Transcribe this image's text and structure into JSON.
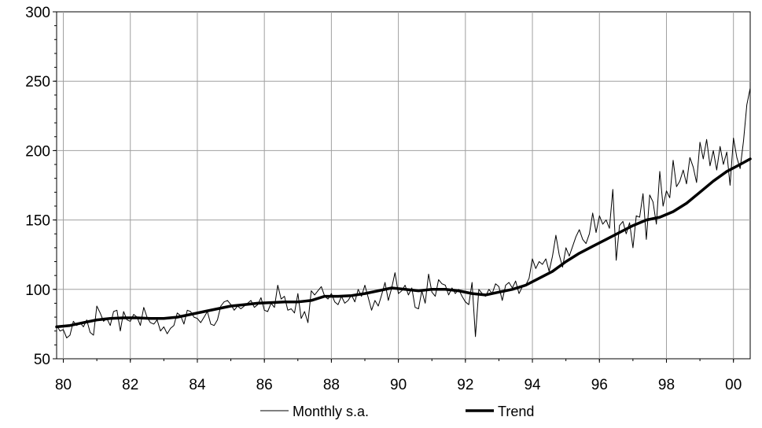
{
  "chart_data": {
    "type": "line",
    "title": "",
    "xlabel": "",
    "ylabel": "",
    "xlim": [
      1979.8,
      2000.5
    ],
    "ylim": [
      50,
      300
    ],
    "x_ticks": [
      "80",
      "82",
      "84",
      "86",
      "88",
      "90",
      "92",
      "94",
      "96",
      "98",
      "00"
    ],
    "y_ticks": [
      "50",
      "100",
      "150",
      "200",
      "250",
      "300"
    ],
    "grid": true,
    "legend": {
      "placement": "bottom-center"
    },
    "series": [
      {
        "name": "Monthly s.a.",
        "style": "thin",
        "color": "#000000",
        "points": [
          [
            1979.8,
            74
          ],
          [
            1979.9,
            70
          ],
          [
            1980.0,
            71
          ],
          [
            1980.1,
            65
          ],
          [
            1980.2,
            67
          ],
          [
            1980.3,
            77
          ],
          [
            1980.4,
            74
          ],
          [
            1980.5,
            76
          ],
          [
            1980.6,
            73
          ],
          [
            1980.7,
            78
          ],
          [
            1980.8,
            69
          ],
          [
            1980.9,
            67
          ],
          [
            1981.0,
            88
          ],
          [
            1981.1,
            83
          ],
          [
            1981.2,
            77
          ],
          [
            1981.3,
            79
          ],
          [
            1981.4,
            74
          ],
          [
            1981.5,
            84
          ],
          [
            1981.6,
            85
          ],
          [
            1981.7,
            70
          ],
          [
            1981.8,
            84
          ],
          [
            1981.9,
            78
          ],
          [
            1982.0,
            77
          ],
          [
            1982.1,
            82
          ],
          [
            1982.2,
            80
          ],
          [
            1982.3,
            74
          ],
          [
            1982.4,
            87
          ],
          [
            1982.5,
            80
          ],
          [
            1982.6,
            76
          ],
          [
            1982.7,
            75
          ],
          [
            1982.8,
            78
          ],
          [
            1982.9,
            70
          ],
          [
            1983.0,
            73
          ],
          [
            1983.1,
            68
          ],
          [
            1983.2,
            72
          ],
          [
            1983.3,
            74
          ],
          [
            1983.4,
            83
          ],
          [
            1983.5,
            81
          ],
          [
            1983.6,
            75
          ],
          [
            1983.7,
            85
          ],
          [
            1983.8,
            84
          ],
          [
            1983.9,
            80
          ],
          [
            1984.0,
            79
          ],
          [
            1984.1,
            76
          ],
          [
            1984.2,
            80
          ],
          [
            1984.3,
            84
          ],
          [
            1984.4,
            75
          ],
          [
            1984.5,
            74
          ],
          [
            1984.6,
            78
          ],
          [
            1984.7,
            88
          ],
          [
            1984.8,
            91
          ],
          [
            1984.9,
            92
          ],
          [
            1985.0,
            89
          ],
          [
            1985.1,
            85
          ],
          [
            1985.2,
            88
          ],
          [
            1985.3,
            86
          ],
          [
            1985.4,
            88
          ],
          [
            1985.5,
            90
          ],
          [
            1985.6,
            92
          ],
          [
            1985.7,
            87
          ],
          [
            1985.8,
            89
          ],
          [
            1985.9,
            94
          ],
          [
            1986.0,
            85
          ],
          [
            1986.1,
            84
          ],
          [
            1986.2,
            90
          ],
          [
            1986.3,
            87
          ],
          [
            1986.4,
            103
          ],
          [
            1986.5,
            93
          ],
          [
            1986.6,
            95
          ],
          [
            1986.7,
            85
          ],
          [
            1986.8,
            86
          ],
          [
            1986.9,
            83
          ],
          [
            1987.0,
            97
          ],
          [
            1987.1,
            79
          ],
          [
            1987.2,
            84
          ],
          [
            1987.3,
            76
          ],
          [
            1987.4,
            99
          ],
          [
            1987.5,
            96
          ],
          [
            1987.6,
            99
          ],
          [
            1987.7,
            102
          ],
          [
            1987.8,
            95
          ],
          [
            1987.9,
            93
          ],
          [
            1988.0,
            97
          ],
          [
            1988.1,
            91
          ],
          [
            1988.2,
            89
          ],
          [
            1988.3,
            95
          ],
          [
            1988.4,
            90
          ],
          [
            1988.5,
            92
          ],
          [
            1988.6,
            96
          ],
          [
            1988.7,
            91
          ],
          [
            1988.8,
            100
          ],
          [
            1988.9,
            95
          ],
          [
            1989.0,
            103
          ],
          [
            1989.1,
            94
          ],
          [
            1989.2,
            85
          ],
          [
            1989.3,
            92
          ],
          [
            1989.4,
            88
          ],
          [
            1989.5,
            96
          ],
          [
            1989.6,
            105
          ],
          [
            1989.7,
            92
          ],
          [
            1989.8,
            101
          ],
          [
            1989.9,
            112
          ],
          [
            1990.0,
            97
          ],
          [
            1990.1,
            99
          ],
          [
            1990.2,
            103
          ],
          [
            1990.3,
            96
          ],
          [
            1990.4,
            101
          ],
          [
            1990.5,
            87
          ],
          [
            1990.6,
            86
          ],
          [
            1990.7,
            99
          ],
          [
            1990.8,
            90
          ],
          [
            1990.9,
            111
          ],
          [
            1991.0,
            98
          ],
          [
            1991.1,
            95
          ],
          [
            1991.2,
            107
          ],
          [
            1991.3,
            104
          ],
          [
            1991.4,
            103
          ],
          [
            1991.5,
            96
          ],
          [
            1991.6,
            101
          ],
          [
            1991.7,
            97
          ],
          [
            1991.8,
            100
          ],
          [
            1991.9,
            95
          ],
          [
            1992.0,
            91
          ],
          [
            1992.1,
            89
          ],
          [
            1992.2,
            105
          ],
          [
            1992.3,
            66
          ],
          [
            1992.4,
            100
          ],
          [
            1992.5,
            97
          ],
          [
            1992.6,
            95
          ],
          [
            1992.7,
            100
          ],
          [
            1992.8,
            97
          ],
          [
            1992.9,
            104
          ],
          [
            1993.0,
            102
          ],
          [
            1993.1,
            92
          ],
          [
            1993.2,
            103
          ],
          [
            1993.3,
            105
          ],
          [
            1993.4,
            101
          ],
          [
            1993.5,
            106
          ],
          [
            1993.6,
            97
          ],
          [
            1993.7,
            102
          ],
          [
            1993.8,
            103
          ],
          [
            1993.9,
            108
          ],
          [
            1994.0,
            122
          ],
          [
            1994.1,
            115
          ],
          [
            1994.2,
            120
          ],
          [
            1994.3,
            118
          ],
          [
            1994.4,
            122
          ],
          [
            1994.5,
            113
          ],
          [
            1994.6,
            124
          ],
          [
            1994.7,
            139
          ],
          [
            1994.8,
            125
          ],
          [
            1994.9,
            116
          ],
          [
            1995.0,
            130
          ],
          [
            1995.1,
            124
          ],
          [
            1995.2,
            131
          ],
          [
            1995.3,
            138
          ],
          [
            1995.4,
            143
          ],
          [
            1995.5,
            136
          ],
          [
            1995.6,
            133
          ],
          [
            1995.7,
            140
          ],
          [
            1995.8,
            155
          ],
          [
            1995.9,
            141
          ],
          [
            1996.0,
            153
          ],
          [
            1996.1,
            147
          ],
          [
            1996.2,
            150
          ],
          [
            1996.3,
            144
          ],
          [
            1996.4,
            172
          ],
          [
            1996.5,
            121
          ],
          [
            1996.6,
            146
          ],
          [
            1996.7,
            149
          ],
          [
            1996.8,
            140
          ],
          [
            1996.9,
            148
          ],
          [
            1997.0,
            130
          ],
          [
            1997.1,
            153
          ],
          [
            1997.2,
            152
          ],
          [
            1997.3,
            169
          ],
          [
            1997.4,
            136
          ],
          [
            1997.5,
            168
          ],
          [
            1997.6,
            163
          ],
          [
            1997.7,
            147
          ],
          [
            1997.8,
            185
          ],
          [
            1997.9,
            160
          ],
          [
            1998.0,
            171
          ],
          [
            1998.1,
            166
          ],
          [
            1998.2,
            193
          ],
          [
            1998.3,
            174
          ],
          [
            1998.4,
            178
          ],
          [
            1998.5,
            186
          ],
          [
            1998.6,
            176
          ],
          [
            1998.7,
            195
          ],
          [
            1998.8,
            188
          ],
          [
            1998.9,
            177
          ],
          [
            1999.0,
            206
          ],
          [
            1999.1,
            194
          ],
          [
            1999.2,
            208
          ],
          [
            1999.3,
            189
          ],
          [
            1999.4,
            200
          ],
          [
            1999.5,
            186
          ],
          [
            1999.6,
            203
          ],
          [
            1999.7,
            190
          ],
          [
            1999.8,
            199
          ],
          [
            1999.9,
            175
          ],
          [
            2000.0,
            209
          ],
          [
            2000.1,
            195
          ],
          [
            2000.2,
            187
          ],
          [
            2000.3,
            207
          ],
          [
            2000.4,
            233
          ],
          [
            2000.5,
            245
          ]
        ]
      },
      {
        "name": "Trend",
        "style": "thick",
        "color": "#000000",
        "points": [
          [
            1979.8,
            73
          ],
          [
            1980.2,
            74
          ],
          [
            1980.6,
            76
          ],
          [
            1981.0,
            78
          ],
          [
            1981.4,
            79
          ],
          [
            1981.8,
            79.5
          ],
          [
            1982.2,
            79.5
          ],
          [
            1982.6,
            79
          ],
          [
            1983.0,
            79
          ],
          [
            1983.4,
            80
          ],
          [
            1983.8,
            82
          ],
          [
            1984.2,
            84
          ],
          [
            1984.6,
            86
          ],
          [
            1985.0,
            88
          ],
          [
            1985.4,
            89
          ],
          [
            1985.8,
            90
          ],
          [
            1986.2,
            90.5
          ],
          [
            1986.6,
            91
          ],
          [
            1987.0,
            91
          ],
          [
            1987.4,
            92
          ],
          [
            1987.8,
            95
          ],
          [
            1988.2,
            95
          ],
          [
            1988.6,
            95.5
          ],
          [
            1989.0,
            97
          ],
          [
            1989.4,
            99
          ],
          [
            1989.8,
            101
          ],
          [
            1990.2,
            100
          ],
          [
            1990.6,
            99
          ],
          [
            1991.0,
            100
          ],
          [
            1991.4,
            100
          ],
          [
            1991.8,
            99
          ],
          [
            1992.2,
            97
          ],
          [
            1992.6,
            96
          ],
          [
            1993.0,
            98
          ],
          [
            1993.4,
            100
          ],
          [
            1993.8,
            103
          ],
          [
            1994.2,
            108
          ],
          [
            1994.6,
            113
          ],
          [
            1995.0,
            120
          ],
          [
            1995.4,
            126
          ],
          [
            1995.8,
            131
          ],
          [
            1996.2,
            136
          ],
          [
            1996.6,
            141
          ],
          [
            1997.0,
            146
          ],
          [
            1997.4,
            150
          ],
          [
            1997.8,
            152
          ],
          [
            1998.2,
            156
          ],
          [
            1998.6,
            162
          ],
          [
            1999.0,
            170
          ],
          [
            1999.4,
            178
          ],
          [
            1999.8,
            185
          ],
          [
            2000.2,
            190
          ],
          [
            2000.5,
            194
          ]
        ]
      }
    ]
  }
}
